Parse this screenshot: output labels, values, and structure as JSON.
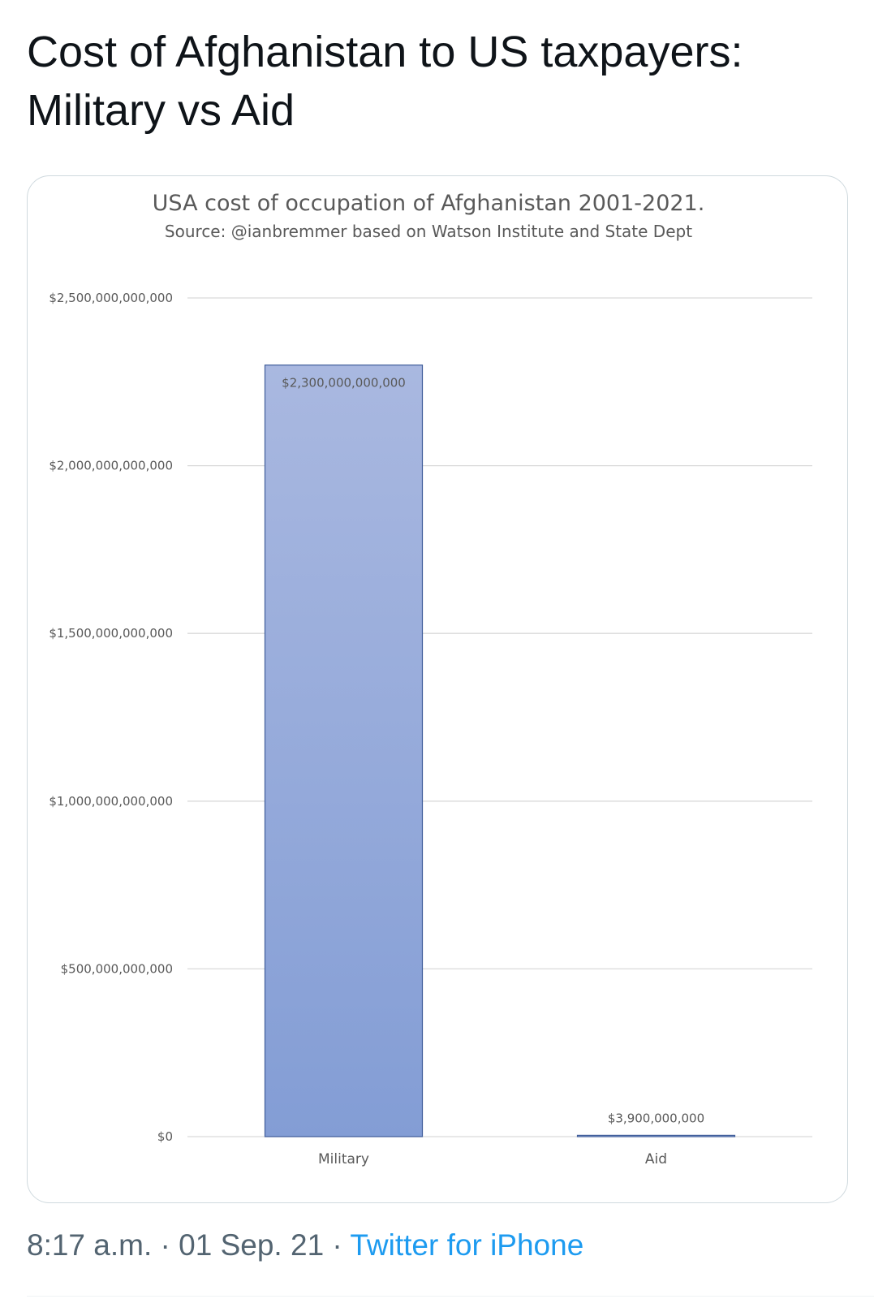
{
  "tweet": {
    "text_line1": "Cost of Afghanistan to US taxpayers:",
    "text_line2": "Military vs Aid"
  },
  "meta": {
    "time": "8:17 a.m.",
    "separator": "·",
    "date": "01 Sep. 21",
    "source": "Twitter for iPhone"
  },
  "colors": {
    "bar_top": "#a9b8e0",
    "bar_bottom": "#839dd5",
    "bar_stroke": "#3f5d9a",
    "link": "#1d9bf0",
    "meta_text": "#536471"
  },
  "chart_data": {
    "type": "bar",
    "title": "USA cost of occupation of Afghanistan 2001-2021.",
    "subtitle": "Source: @ianbremmer based on Watson Institute and State Dept",
    "categories": [
      "Military",
      "Aid"
    ],
    "values": [
      2300000000000,
      3900000000
    ],
    "data_labels": [
      "$2,300,000,000,000",
      "$3,900,000,000"
    ],
    "ylim": [
      0,
      2500000000000
    ],
    "yticks": [
      0,
      500000000000,
      1000000000000,
      1500000000000,
      2000000000000,
      2500000000000
    ],
    "ytick_labels": [
      "$0",
      "$500,000,000,000",
      "$1,000,000,000,000",
      "$1,500,000,000,000",
      "$2,000,000,000,000",
      "$2,500,000,000,000"
    ],
    "xlabel": "",
    "ylabel": "",
    "grid": true,
    "legend": "none"
  }
}
